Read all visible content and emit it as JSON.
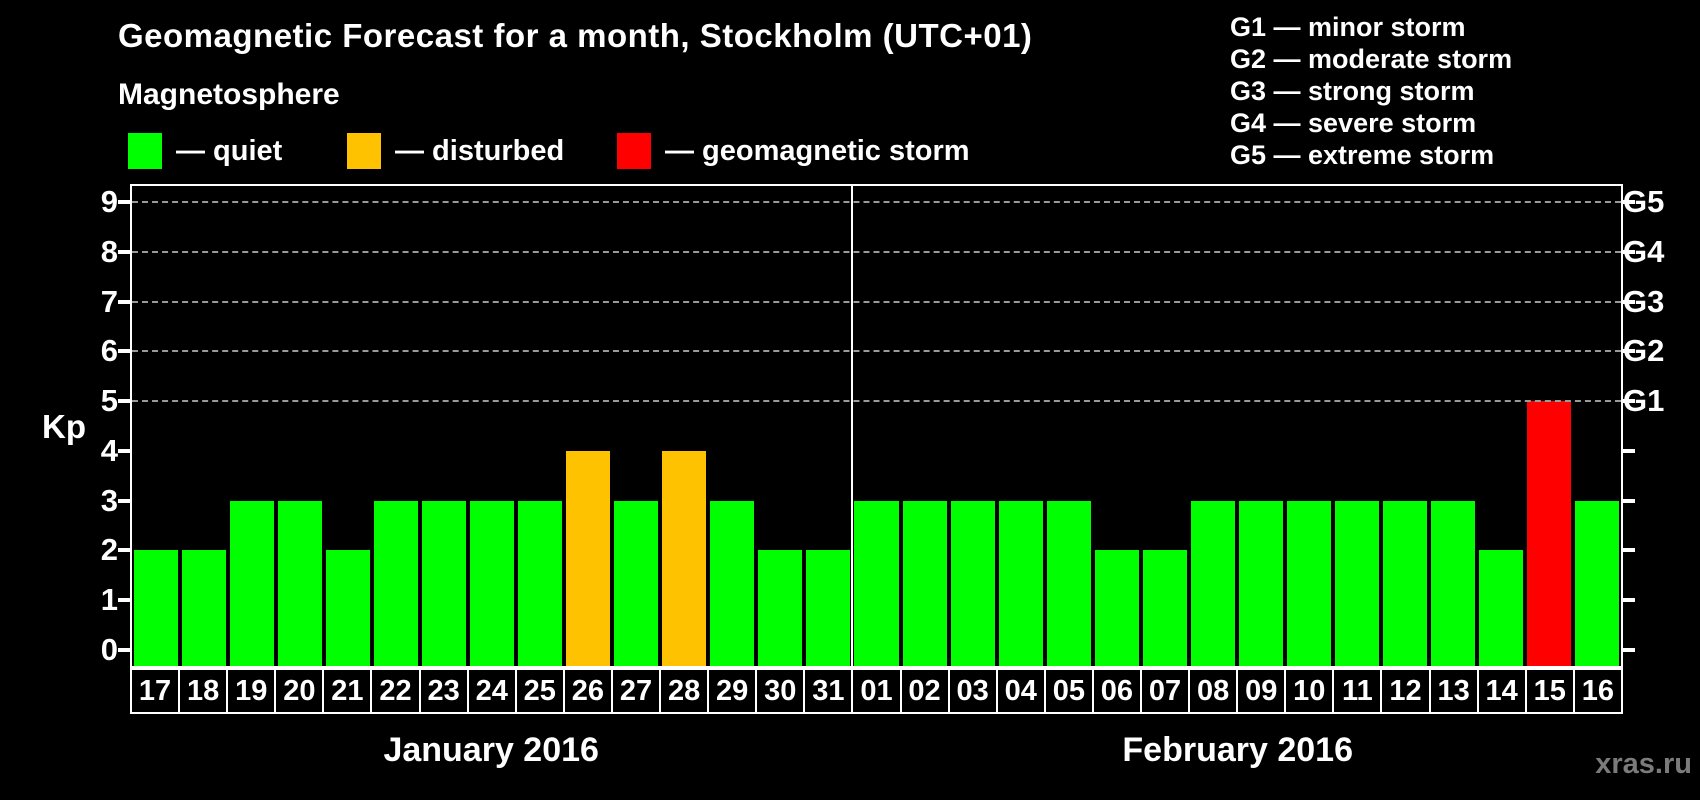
{
  "watermark": "xras.ru",
  "chart_data": {
    "type": "bar",
    "title": "Geomagnetic Forecast for a month, Stockholm (UTC+01)",
    "subtitle": "Magnetosphere",
    "ylabel": "Kp",
    "ylim": [
      0,
      9
    ],
    "yticks": [
      0,
      1,
      2,
      3,
      4,
      5,
      6,
      7,
      8,
      9
    ],
    "grid": "horizontal dashed gridlines at storm levels only",
    "gridlines_at": [
      5,
      6,
      7,
      8,
      9
    ],
    "legend_position": "top-left",
    "legend": [
      {
        "level": "quiet",
        "label": "— quiet",
        "color": "#00ff00"
      },
      {
        "level": "disturbed",
        "label": "— disturbed",
        "color": "#ffc200"
      },
      {
        "level": "storm",
        "label": "— geomagnetic storm",
        "color": "#ff0000"
      }
    ],
    "g_scale_legend": [
      "G1 — minor storm",
      "G2 — moderate storm",
      "G3 — strong storm",
      "G4 — severe storm",
      "G5 — extreme storm"
    ],
    "right_axis": [
      {
        "kp": 5,
        "label": "G1"
      },
      {
        "kp": 6,
        "label": "G2"
      },
      {
        "kp": 7,
        "label": "G3"
      },
      {
        "kp": 8,
        "label": "G4"
      },
      {
        "kp": 9,
        "label": "G5"
      }
    ],
    "colors": {
      "quiet": "#00ff00",
      "disturbed": "#ffc200",
      "storm": "#ff0000"
    },
    "months": [
      {
        "name": "January 2016",
        "days": [
          {
            "day": "17",
            "kp": 2,
            "level": "quiet"
          },
          {
            "day": "18",
            "kp": 2,
            "level": "quiet"
          },
          {
            "day": "19",
            "kp": 3,
            "level": "quiet"
          },
          {
            "day": "20",
            "kp": 3,
            "level": "quiet"
          },
          {
            "day": "21",
            "kp": 2,
            "level": "quiet"
          },
          {
            "day": "22",
            "kp": 3,
            "level": "quiet"
          },
          {
            "day": "23",
            "kp": 3,
            "level": "quiet"
          },
          {
            "day": "24",
            "kp": 3,
            "level": "quiet"
          },
          {
            "day": "25",
            "kp": 3,
            "level": "quiet"
          },
          {
            "day": "26",
            "kp": 4,
            "level": "disturbed"
          },
          {
            "day": "27",
            "kp": 3,
            "level": "quiet"
          },
          {
            "day": "28",
            "kp": 4,
            "level": "disturbed"
          },
          {
            "day": "29",
            "kp": 3,
            "level": "quiet"
          },
          {
            "day": "30",
            "kp": 2,
            "level": "quiet"
          },
          {
            "day": "31",
            "kp": 2,
            "level": "quiet"
          }
        ]
      },
      {
        "name": "February 2016",
        "days": [
          {
            "day": "01",
            "kp": 3,
            "level": "quiet"
          },
          {
            "day": "02",
            "kp": 3,
            "level": "quiet"
          },
          {
            "day": "03",
            "kp": 3,
            "level": "quiet"
          },
          {
            "day": "04",
            "kp": 3,
            "level": "quiet"
          },
          {
            "day": "05",
            "kp": 3,
            "level": "quiet"
          },
          {
            "day": "06",
            "kp": 2,
            "level": "quiet"
          },
          {
            "day": "07",
            "kp": 2,
            "level": "quiet"
          },
          {
            "day": "08",
            "kp": 3,
            "level": "quiet"
          },
          {
            "day": "09",
            "kp": 3,
            "level": "quiet"
          },
          {
            "day": "10",
            "kp": 3,
            "level": "quiet"
          },
          {
            "day": "11",
            "kp": 3,
            "level": "quiet"
          },
          {
            "day": "12",
            "kp": 3,
            "level": "quiet"
          },
          {
            "day": "13",
            "kp": 3,
            "level": "quiet"
          },
          {
            "day": "14",
            "kp": 2,
            "level": "quiet"
          },
          {
            "day": "15",
            "kp": 5,
            "level": "storm"
          },
          {
            "day": "16",
            "kp": 3,
            "level": "quiet"
          }
        ]
      }
    ]
  }
}
